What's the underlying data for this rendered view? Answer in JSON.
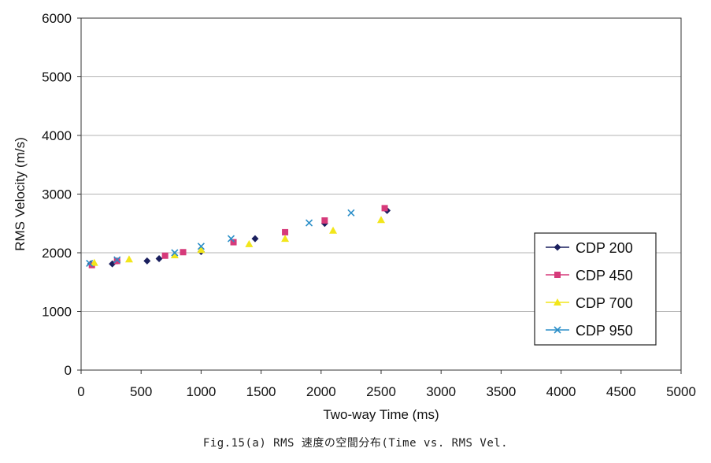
{
  "chart_data": {
    "type": "scatter",
    "title": "",
    "xlabel": "Two-way Time (ms)",
    "ylabel": "RMS Velocity (m/s)",
    "xlim": [
      0,
      5000
    ],
    "ylim": [
      0,
      6000
    ],
    "x_ticks": [
      "0",
      "500",
      "1000",
      "1500",
      "2000",
      "2500",
      "3000",
      "3500",
      "4000",
      "4500",
      "5000"
    ],
    "y_ticks": [
      "0",
      "1000",
      "2000",
      "3000",
      "4000",
      "5000",
      "6000"
    ],
    "grid": "horizontal",
    "legend_position": "right",
    "series": [
      {
        "name": "CDP 200",
        "marker": "diamond",
        "color": "#1a1f5e",
        "points": [
          [
            80,
            1810
          ],
          [
            260,
            1810
          ],
          [
            300,
            1860
          ],
          [
            550,
            1860
          ],
          [
            650,
            1900
          ],
          [
            1000,
            2020
          ],
          [
            1450,
            2240
          ],
          [
            2030,
            2500
          ],
          [
            2550,
            2720
          ]
        ]
      },
      {
        "name": "CDP 450",
        "marker": "square",
        "color": "#d63a7a",
        "points": [
          [
            90,
            1790
          ],
          [
            300,
            1860
          ],
          [
            700,
            1950
          ],
          [
            850,
            2010
          ],
          [
            1270,
            2180
          ],
          [
            1700,
            2350
          ],
          [
            2030,
            2550
          ],
          [
            2530,
            2760
          ]
        ]
      },
      {
        "name": "CDP 700",
        "marker": "triangle",
        "color": "#f2e61a",
        "points": [
          [
            110,
            1830
          ],
          [
            400,
            1890
          ],
          [
            780,
            1960
          ],
          [
            1000,
            2050
          ],
          [
            1400,
            2150
          ],
          [
            1700,
            2240
          ],
          [
            2100,
            2380
          ],
          [
            2500,
            2560
          ]
        ]
      },
      {
        "name": "CDP 950",
        "marker": "x",
        "color": "#2a8ec8",
        "points": [
          [
            70,
            1820
          ],
          [
            300,
            1880
          ],
          [
            780,
            2000
          ],
          [
            1000,
            2110
          ],
          [
            1250,
            2240
          ],
          [
            1900,
            2510
          ],
          [
            2250,
            2680
          ]
        ]
      }
    ]
  },
  "caption": "Fig.15(a)  RMS 速度の空間分布(Time vs. RMS Vel."
}
